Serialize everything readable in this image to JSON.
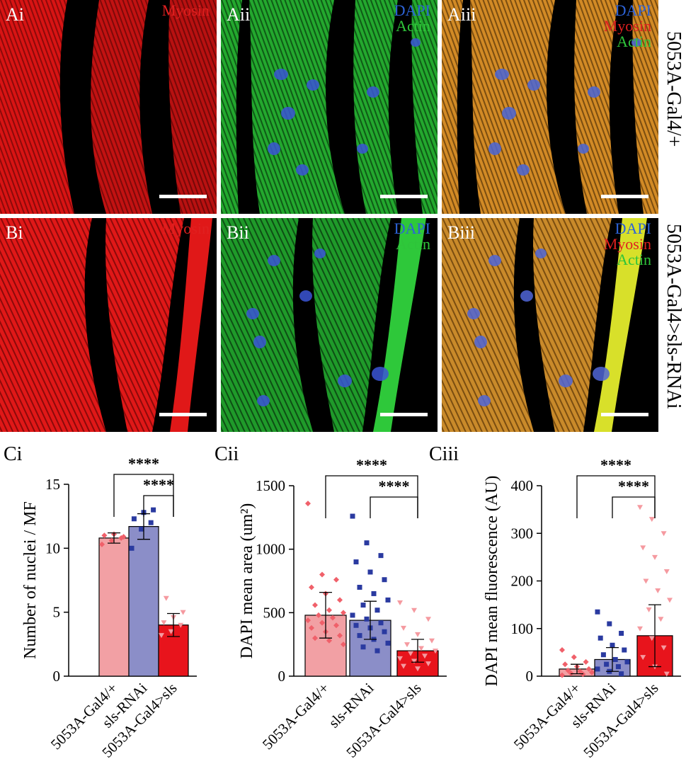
{
  "rows": [
    {
      "row_label": "5053A-Gal4/+",
      "panels": [
        {
          "label": "Ai",
          "channels": [
            {
              "text": "Myosin",
              "color": "#e02020"
            }
          ]
        },
        {
          "label": "Aii",
          "channels": [
            {
              "text": "DAPI",
              "color": "#2d63d8"
            },
            {
              "text": "Actin",
              "color": "#2fc43a"
            }
          ]
        },
        {
          "label": "Aiii",
          "channels": [
            {
              "text": "DAPI",
              "color": "#2d63d8"
            },
            {
              "text": "Myosin",
              "color": "#e02020"
            },
            {
              "text": "Actin",
              "color": "#2fc43a"
            }
          ]
        }
      ]
    },
    {
      "row_label": "5053A-Gal4>sls-RNAi",
      "panels": [
        {
          "label": "Bi",
          "channels": [
            {
              "text": "Myosin",
              "color": "#e02020"
            }
          ]
        },
        {
          "label": "Bii",
          "channels": [
            {
              "text": "DAPI",
              "color": "#2d63d8"
            },
            {
              "text": "Actin",
              "color": "#2fc43a"
            }
          ]
        },
        {
          "label": "Biii",
          "channels": [
            {
              "text": "DAPI",
              "color": "#2d63d8"
            },
            {
              "text": "Myosin",
              "color": "#e02020"
            },
            {
              "text": "Actin",
              "color": "#2fc43a"
            }
          ]
        }
      ]
    }
  ],
  "chart_data": [
    {
      "panel": "Ci",
      "type": "bar",
      "ylabel": "Number of nuclei / MF",
      "ylim": [
        0,
        15
      ],
      "yticks": [
        0,
        5,
        10,
        15
      ],
      "categories": [
        "5053A-Gal4/+",
        "sls-RNAi",
        "5053A-Gal4>sls"
      ],
      "values": [
        10.8,
        11.7,
        4.0
      ],
      "error": [
        0.4,
        1.0,
        0.9
      ],
      "colors": [
        "#f2a0a4",
        "#8b8ec8",
        "#e8141c"
      ],
      "point_colors": [
        "#f0606a",
        "#2a3aa0",
        "#f59aa0"
      ],
      "points": [
        [
          10.3,
          10.6,
          10.8,
          11.0,
          11.1,
          10.9
        ],
        [
          10.0,
          11.5,
          12.0,
          12.3,
          12.8,
          13.0
        ],
        [
          3.2,
          3.5,
          4.0,
          4.2,
          4.6,
          5.0,
          6.1
        ]
      ],
      "annotations": [
        {
          "text": "****",
          "from": 0,
          "to": 2
        },
        {
          "text": "****",
          "from": 1,
          "to": 2
        }
      ]
    },
    {
      "panel": "Cii",
      "type": "bar",
      "ylabel": "DAPI mean area (um²)",
      "ylim": [
        0,
        1500
      ],
      "yticks": [
        0,
        500,
        1000,
        1500
      ],
      "categories": [
        "5053A-Gal4/+",
        "sls-RNAi",
        "5053A-Gal4>sls"
      ],
      "values": [
        480,
        440,
        200
      ],
      "error": [
        180,
        150,
        90
      ],
      "colors": [
        "#f2a0a4",
        "#8b8ec8",
        "#e8141c"
      ],
      "point_colors": [
        "#f0606a",
        "#2a3aa0",
        "#f59aa0"
      ],
      "points": [
        [
          1360,
          800,
          760,
          700,
          650,
          600,
          560,
          520,
          500,
          480,
          460,
          440,
          420,
          400,
          380,
          350,
          320,
          300,
          280,
          250
        ],
        [
          1260,
          1050,
          950,
          900,
          820,
          760,
          700,
          650,
          600,
          560,
          520,
          480,
          450,
          420,
          400,
          380,
          350,
          320,
          290,
          260,
          230,
          200
        ],
        [
          580,
          520,
          450,
          380,
          330,
          280,
          250,
          220,
          200,
          180,
          160,
          140,
          120,
          100,
          80,
          60
        ]
      ],
      "annotations": [
        {
          "text": "****",
          "from": 0,
          "to": 2
        },
        {
          "text": "****",
          "from": 1,
          "to": 2
        }
      ]
    },
    {
      "panel": "Ciii",
      "type": "bar",
      "ylabel": "DAPI mean fluorescence (AU)",
      "ylim": [
        0,
        400
      ],
      "yticks": [
        0,
        100,
        200,
        300,
        400
      ],
      "categories": [
        "5053A-Gal4/+",
        "sls-RNAi",
        "5053A-Gal4>sls"
      ],
      "values": [
        15,
        35,
        85
      ],
      "error": [
        10,
        25,
        65
      ],
      "colors": [
        "#f2a0a4",
        "#8b8ec8",
        "#e8141c"
      ],
      "point_colors": [
        "#f0606a",
        "#2a3aa0",
        "#f59aa0"
      ],
      "points": [
        [
          55,
          40,
          30,
          25,
          20,
          15,
          12,
          10,
          8,
          6,
          4,
          2
        ],
        [
          135,
          110,
          90,
          80,
          65,
          55,
          45,
          35,
          30,
          25,
          20,
          15,
          10,
          5
        ],
        [
          355,
          330,
          300,
          270,
          250,
          220,
          200,
          180,
          160,
          140,
          120,
          100,
          80,
          60,
          40,
          20,
          5
        ]
      ],
      "annotations": [
        {
          "text": "****",
          "from": 0,
          "to": 2
        },
        {
          "text": "****",
          "from": 1,
          "to": 2
        }
      ]
    }
  ]
}
